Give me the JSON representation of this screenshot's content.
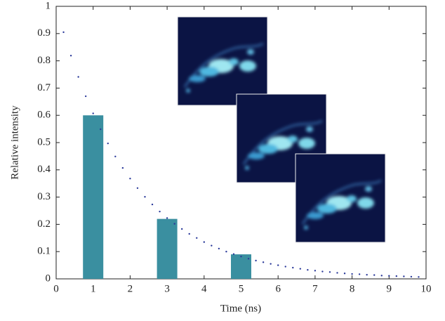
{
  "chart_data": {
    "type": "bar",
    "xlabel": "Time (ns)",
    "ylabel": "Relative intensity",
    "xlim": [
      0,
      10
    ],
    "ylim": [
      0,
      1
    ],
    "xticks": [
      0,
      1,
      2,
      3,
      4,
      5,
      6,
      7,
      8,
      9,
      10
    ],
    "yticks": [
      0,
      0.1,
      0.2,
      0.3,
      0.4,
      0.5,
      0.6,
      0.7,
      0.8,
      0.9,
      1
    ],
    "series": [
      {
        "type": "bar",
        "color": "#3a8fa0",
        "x": [
          1,
          3,
          5
        ],
        "values": [
          0.6,
          0.22,
          0.09
        ]
      },
      {
        "type": "dots",
        "color": "#2b3a9a",
        "x": [
          0.2,
          0.4,
          0.6,
          0.8,
          1.0,
          1.2,
          1.4,
          1.6,
          1.8,
          2.0,
          2.2,
          2.4,
          2.6,
          2.8,
          3.0,
          3.2,
          3.4,
          3.6,
          3.8,
          4.0,
          4.2,
          4.4,
          4.6,
          4.8,
          5.0,
          5.2,
          5.4,
          5.6,
          5.8,
          6.0,
          6.2,
          6.4,
          6.6,
          6.8,
          7.0,
          7.2,
          7.4,
          7.6,
          7.8,
          8.0,
          8.2,
          8.4,
          8.6,
          8.8,
          9.0,
          9.2,
          9.4,
          9.6,
          9.8
        ],
        "values": [
          0.905,
          0.819,
          0.741,
          0.67,
          0.607,
          0.549,
          0.497,
          0.449,
          0.407,
          0.368,
          0.333,
          0.301,
          0.273,
          0.247,
          0.223,
          0.202,
          0.183,
          0.165,
          0.15,
          0.135,
          0.122,
          0.111,
          0.1,
          0.091,
          0.082,
          0.074,
          0.067,
          0.061,
          0.055,
          0.05,
          0.045,
          0.041,
          0.037,
          0.033,
          0.03,
          0.027,
          0.025,
          0.022,
          0.02,
          0.018,
          0.017,
          0.015,
          0.014,
          0.012,
          0.011,
          0.01,
          0.009,
          0.008,
          0.007
        ]
      }
    ]
  }
}
